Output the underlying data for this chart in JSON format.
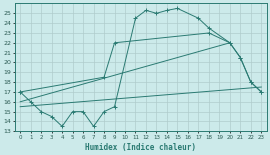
{
  "xlabel": "Humidex (Indice chaleur)",
  "background_color": "#cceaea",
  "grid_color": "#b0cccc",
  "line_color": "#2a7a72",
  "xlim": [
    -0.5,
    23.5
  ],
  "ylim": [
    13,
    26
  ],
  "xticks": [
    0,
    1,
    2,
    3,
    4,
    5,
    6,
    7,
    8,
    9,
    10,
    11,
    12,
    13,
    14,
    15,
    16,
    17,
    18,
    19,
    20,
    21,
    22,
    23
  ],
  "yticks": [
    13,
    14,
    15,
    16,
    17,
    18,
    19,
    20,
    21,
    22,
    23,
    24,
    25
  ],
  "line1_x": [
    0,
    1,
    2,
    3,
    4,
    5,
    6,
    7,
    8,
    9,
    11,
    12,
    13,
    14,
    15,
    17,
    18,
    20,
    21,
    22,
    23
  ],
  "line1_y": [
    17,
    16,
    15,
    14.5,
    13.5,
    15,
    15,
    13.5,
    15,
    15.5,
    24.5,
    25.3,
    25,
    25.3,
    25.5,
    24.5,
    23.5,
    22,
    20.5,
    18,
    17
  ],
  "line2_x": [
    0,
    8,
    9,
    18,
    20,
    21,
    22,
    23
  ],
  "line2_y": [
    17,
    18.5,
    22,
    23,
    22,
    20.5,
    18,
    17
  ],
  "line3_x": [
    0,
    23
  ],
  "line3_y": [
    15.5,
    17.5
  ],
  "line4_x": [
    0,
    20
  ],
  "line4_y": [
    16,
    22
  ]
}
